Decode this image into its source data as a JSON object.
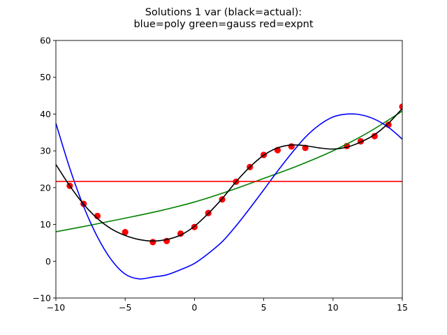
{
  "chart_data": {
    "type": "line",
    "title": "Solutions 1 var (black=actual):",
    "subtitle": "blue=poly green=gauss red=expnt",
    "xlabel": "",
    "ylabel": "",
    "xlim": [
      -10,
      15
    ],
    "ylim": [
      -10,
      60
    ],
    "x_ticks": [
      -10,
      -5,
      0,
      5,
      10,
      15
    ],
    "y_ticks": [
      -10,
      0,
      10,
      20,
      30,
      40,
      50,
      60
    ],
    "x_tick_labels": [
      "−10",
      "−5",
      "0",
      "5",
      "10",
      "15"
    ],
    "y_tick_labels": [
      "−10",
      "0",
      "10",
      "20",
      "30",
      "40",
      "50",
      "60"
    ],
    "grid": false,
    "legend": "none",
    "series": [
      {
        "type": "scatter",
        "color": "#ff0000",
        "x": [
          -9,
          -8,
          -7,
          -5,
          -3,
          -2,
          -1,
          0,
          1,
          2,
          3,
          4,
          5,
          6,
          7,
          8,
          11,
          12,
          13,
          14,
          15
        ],
        "y": [
          20.5,
          15.6,
          12.3,
          7.9,
          5.2,
          5.5,
          7.5,
          9.3,
          13.1,
          16.8,
          21.6,
          25.6,
          28.9,
          30.2,
          31.2,
          30.8,
          31.3,
          32.6,
          34.0,
          37.1,
          42.0
        ]
      },
      {
        "type": "line",
        "color": "#000000",
        "x": [
          -10,
          -9,
          -8,
          -7,
          -6,
          -5,
          -4,
          -3,
          -2,
          -1,
          0,
          1,
          2,
          3,
          4,
          5,
          6,
          7,
          8,
          9,
          10,
          11,
          12,
          13,
          14,
          15
        ],
        "y": [
          26.3,
          20.5,
          15.5,
          11.6,
          8.8,
          7.0,
          5.9,
          5.5,
          5.9,
          7.1,
          9.5,
          13.0,
          17.0,
          21.6,
          25.6,
          28.8,
          30.8,
          31.6,
          31.4,
          30.8,
          30.5,
          31.0,
          32.4,
          34.4,
          37.5,
          41.5
        ]
      },
      {
        "type": "line",
        "color": "#0000ff",
        "x": [
          -10,
          -9,
          -8,
          -7,
          -6,
          -5,
          -4,
          -3,
          -2,
          -1,
          0,
          1,
          2,
          3,
          4,
          5,
          6,
          7,
          8,
          9,
          10,
          11,
          12,
          13,
          14,
          15
        ],
        "y": [
          37.5,
          25.3,
          14.9,
          6.6,
          0.4,
          -3.5,
          -4.8,
          -4.3,
          -3.7,
          -2.3,
          -0.6,
          2.1,
          5.3,
          9.6,
          14.4,
          19.4,
          24.5,
          29.3,
          33.7,
          37.0,
          39.2,
          40.0,
          39.8,
          38.6,
          36.4,
          33.2
        ]
      },
      {
        "type": "line",
        "color": "#008000",
        "x": [
          -10,
          -7.5,
          -5,
          -2.5,
          0,
          2.5,
          5,
          7.5,
          10,
          12.5,
          15
        ],
        "y": [
          8.0,
          9.8,
          11.7,
          13.7,
          16.1,
          19.1,
          22.5,
          26.0,
          30.0,
          34.9,
          40.8
        ]
      },
      {
        "type": "line",
        "color": "#ff0000",
        "x": [
          -10,
          15
        ],
        "y": [
          21.7,
          21.7
        ]
      }
    ]
  }
}
